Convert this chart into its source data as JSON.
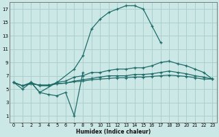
{
  "xlabel": "Humidex (Indice chaleur)",
  "background_color": "#cbe8e6",
  "grid_color": "#aacfcd",
  "line_color": "#1e6b68",
  "xlim": [
    -0.5,
    23.5
  ],
  "ylim": [
    0,
    18
  ],
  "xticks": [
    0,
    1,
    2,
    3,
    4,
    5,
    6,
    7,
    8,
    9,
    10,
    11,
    12,
    13,
    14,
    15,
    16,
    17,
    18,
    19,
    20,
    21,
    22,
    23
  ],
  "yticks": [
    1,
    3,
    5,
    7,
    9,
    11,
    13,
    15,
    17
  ],
  "series_bell": {
    "x": [
      2,
      3,
      5,
      7,
      8,
      9,
      10,
      11,
      12,
      13,
      14,
      15,
      16,
      17
    ],
    "y": [
      6,
      4.5,
      6,
      8,
      10,
      14,
      15.5,
      16.5,
      17,
      17.5,
      17.5,
      17,
      14.5,
      12
    ]
  },
  "series_zigzag": {
    "x": [
      0,
      1,
      2,
      3,
      4,
      5,
      6,
      7,
      8
    ],
    "y": [
      6,
      5,
      6,
      4.5,
      4.2,
      4,
      4.5,
      1.0,
      7.5
    ]
  },
  "series_upper": {
    "x": [
      0,
      1,
      2,
      3,
      4,
      5,
      6,
      7,
      8,
      9,
      10,
      11,
      12,
      13,
      14,
      15,
      16,
      17,
      18,
      19,
      20,
      21,
      22,
      23
    ],
    "y": [
      6,
      5.5,
      6,
      5.5,
      5.5,
      6,
      6.2,
      6.8,
      7.0,
      7.5,
      7.5,
      7.8,
      8.0,
      8.0,
      8.2,
      8.2,
      8.5,
      9.0,
      9.2,
      8.8,
      8.5,
      8.0,
      7.5,
      6.5
    ]
  },
  "series_mid": {
    "x": [
      0,
      1,
      2,
      3,
      4,
      5,
      6,
      7,
      8,
      9,
      10,
      11,
      12,
      13,
      14,
      15,
      16,
      17,
      18,
      19,
      20,
      21,
      22,
      23
    ],
    "y": [
      6,
      5.5,
      5.8,
      5.6,
      5.6,
      5.8,
      5.9,
      6.2,
      6.4,
      6.6,
      6.8,
      7.0,
      7.0,
      7.0,
      7.2,
      7.2,
      7.3,
      7.5,
      7.7,
      7.5,
      7.3,
      7.0,
      6.8,
      6.5
    ]
  },
  "series_low": {
    "x": [
      0,
      1,
      2,
      3,
      4,
      5,
      6,
      7,
      8,
      9,
      10,
      11,
      12,
      13,
      14,
      15,
      16,
      17,
      18,
      19,
      20,
      21,
      22,
      23
    ],
    "y": [
      6,
      5.5,
      5.8,
      5.6,
      5.6,
      5.8,
      5.9,
      6.1,
      6.2,
      6.4,
      6.5,
      6.6,
      6.7,
      6.7,
      6.8,
      6.8,
      6.9,
      7.0,
      7.1,
      7.0,
      6.9,
      6.7,
      6.5,
      6.5
    ]
  }
}
